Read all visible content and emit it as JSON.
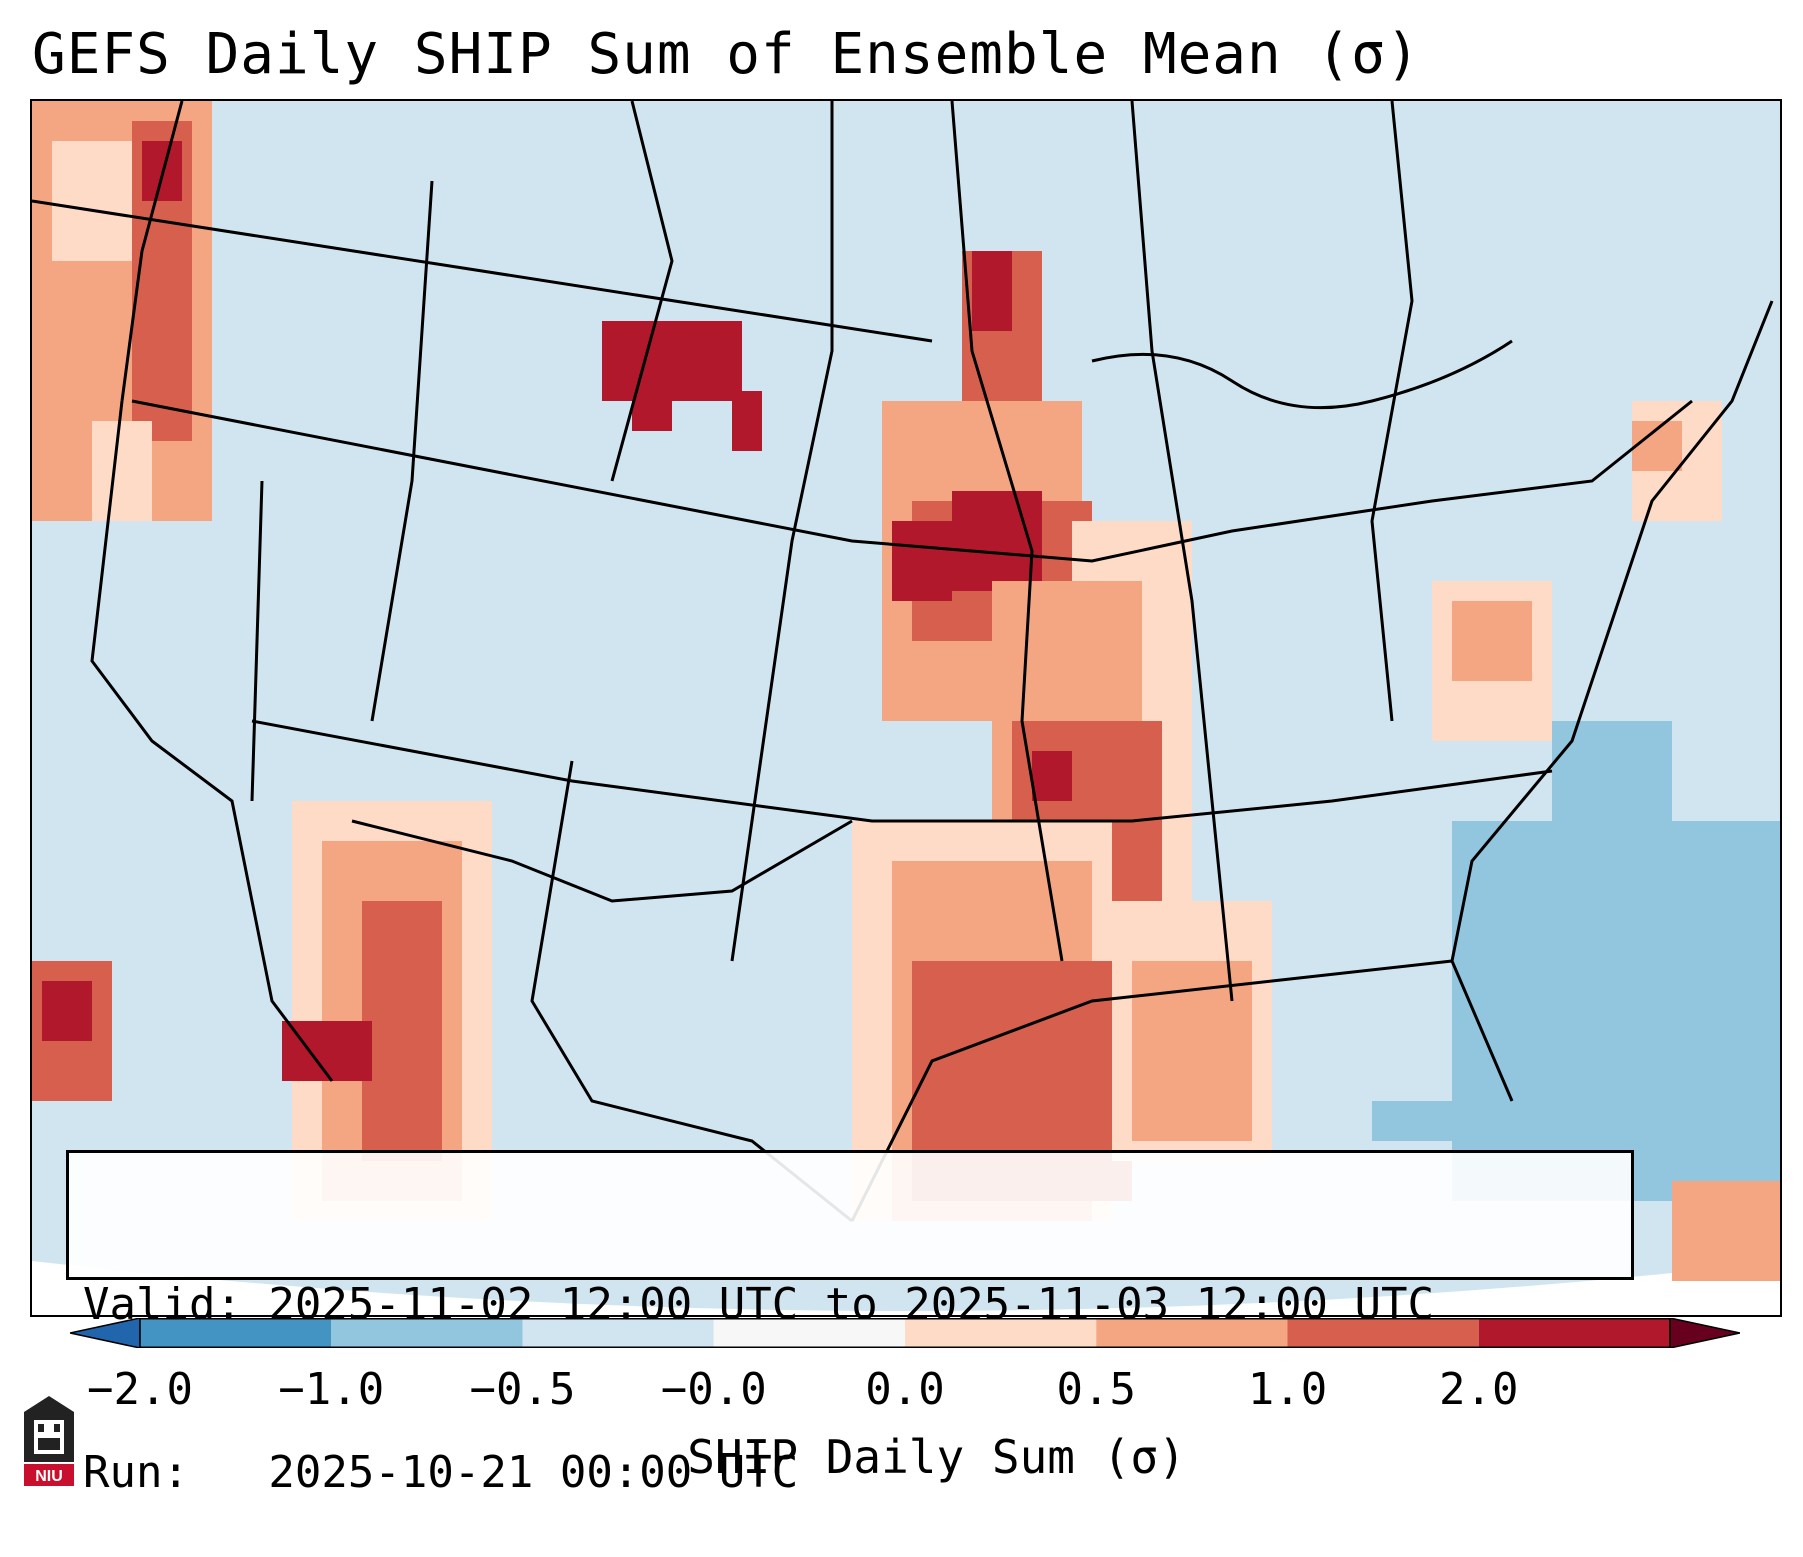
{
  "title": "GEFS Daily SHIP Sum of Ensemble Mean (σ)",
  "info": {
    "valid_line": "Valid: 2025-11-02 12:00 UTC to 2025-11-03 12:00 UTC",
    "run_line": "Run:   2025-10-21 00:00 UTC"
  },
  "colorbar": {
    "label": "SHIP Daily Sum (σ)",
    "ticks": [
      "−2.0",
      "−1.0",
      "−0.5",
      "−0.0",
      "0.0",
      "0.5",
      "1.0",
      "2.0"
    ],
    "colors": [
      "#4393c3",
      "#92c5de",
      "#d1e5f0",
      "#f7f7f7",
      "#fddbc7",
      "#f4a582",
      "#d6604d",
      "#b2182b"
    ]
  },
  "logo": {
    "text": "NIU",
    "icon": "niu-logo-icon"
  },
  "map": {
    "projection": "Lambert conformal, CONUS",
    "background_color": "#d1e5f0"
  }
}
